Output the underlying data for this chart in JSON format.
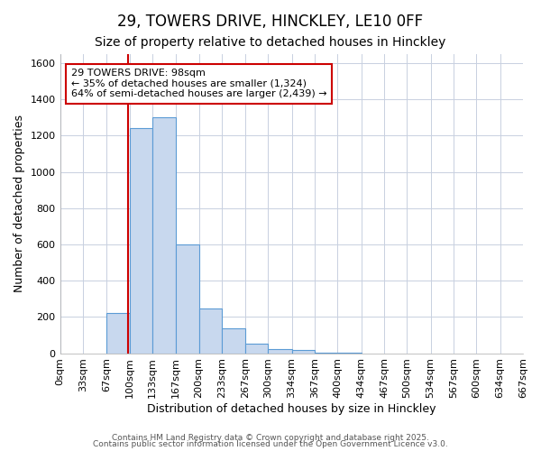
{
  "title1": "29, TOWERS DRIVE, HINCKLEY, LE10 0FF",
  "title2": "Size of property relative to detached houses in Hinckley",
  "xlabel": "Distribution of detached houses by size in Hinckley",
  "ylabel": "Number of detached properties",
  "bin_edges": [
    0,
    33,
    67,
    100,
    133,
    167,
    200,
    233,
    267,
    300,
    334,
    367,
    400,
    434,
    467,
    500,
    534,
    567,
    600,
    634,
    667
  ],
  "bar_heights": [
    0,
    0,
    220,
    1240,
    1300,
    600,
    245,
    135,
    55,
    25,
    20,
    5,
    5,
    0,
    0,
    0,
    0,
    0,
    0,
    0
  ],
  "bar_color": "#c8d8ee",
  "bar_edgecolor": "#5b9bd5",
  "property_size": 98,
  "vline_color": "#cc0000",
  "annotation_text": "29 TOWERS DRIVE: 98sqm\n← 35% of detached houses are smaller (1,324)\n64% of semi-detached houses are larger (2,439) →",
  "annotation_box_color": "#ffffff",
  "annotation_box_edgecolor": "#cc0000",
  "ylim": [
    0,
    1650
  ],
  "yticks": [
    0,
    200,
    400,
    600,
    800,
    1000,
    1200,
    1400,
    1600
  ],
  "bg_color": "#ffffff",
  "plot_bg_color": "#ffffff",
  "grid_color": "#c8d0e0",
  "footer1": "Contains HM Land Registry data © Crown copyright and database right 2025.",
  "footer2": "Contains public sector information licensed under the Open Government Licence v3.0.",
  "title_fontsize": 12,
  "subtitle_fontsize": 10,
  "tick_label_fontsize": 8,
  "annotation_fontsize": 8,
  "ylabel_fontsize": 9,
  "xlabel_fontsize": 9
}
